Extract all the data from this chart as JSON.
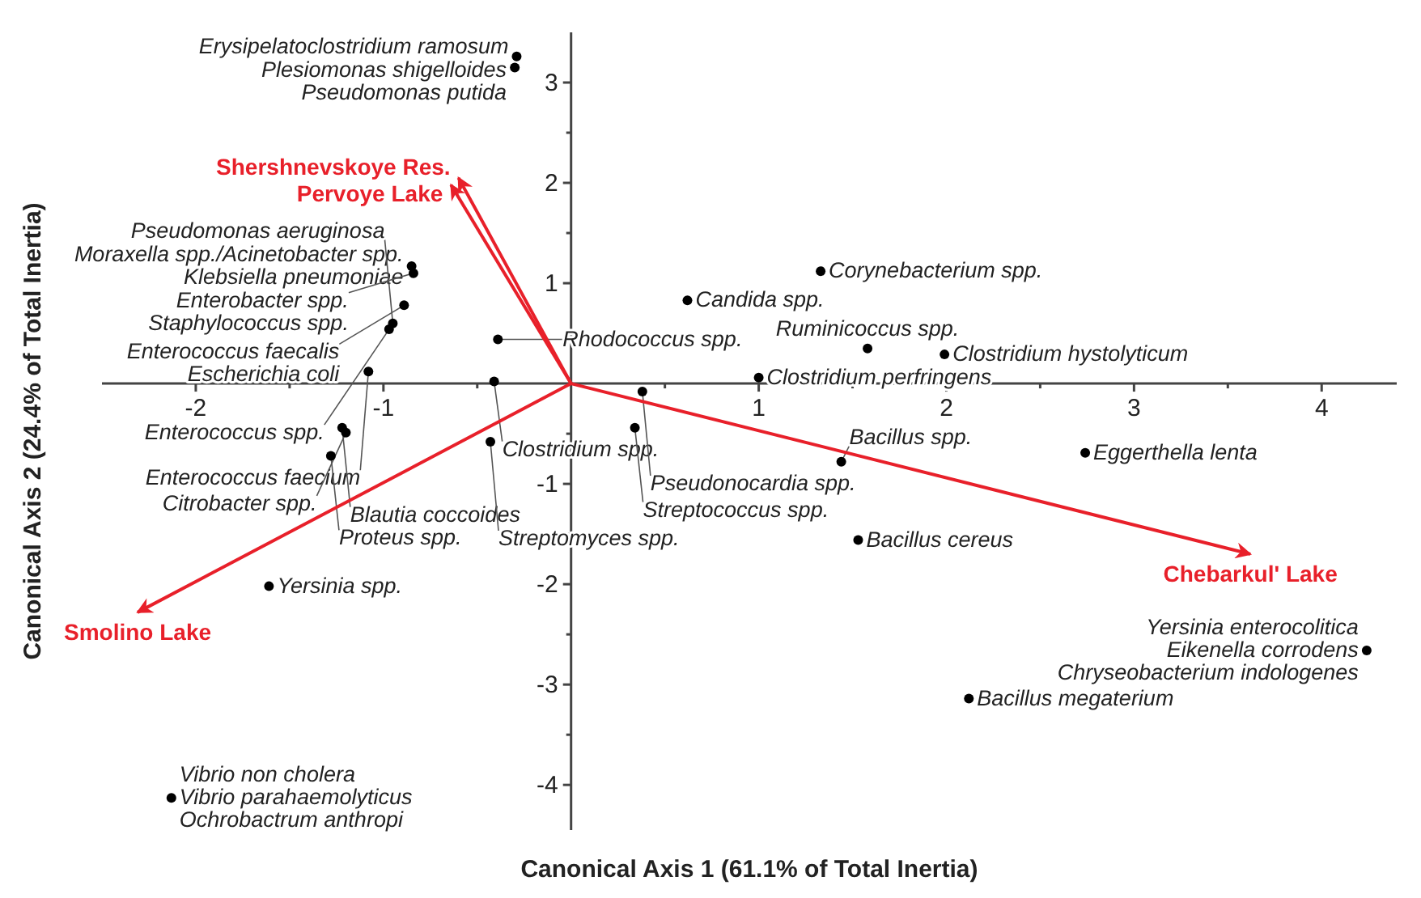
{
  "chart_data": {
    "type": "scatter",
    "xlabel": "Canonical Axis 1 (61.1% of Total Inertia)",
    "ylabel": "Canonical Axis 2 (24.4% of Total Inertia)",
    "xlim": [
      -2.5,
      4.4
    ],
    "ylim": [
      -4.45,
      3.5
    ],
    "xticks": [
      -2,
      {
        "value": -1.5,
        "label": null
      },
      -1,
      {
        "value": -0.5,
        "label": null
      },
      {
        "value": 0.5,
        "label": null
      },
      1,
      {
        "value": 1.5,
        "label": null
      },
      2,
      {
        "value": 2.5,
        "label": null
      },
      3,
      {
        "value": 3.5,
        "label": null
      },
      4
    ],
    "yticks": [
      -4,
      {
        "value": -3.5,
        "label": null
      },
      -3,
      {
        "value": -2.5,
        "label": null
      },
      -2,
      {
        "value": -1.5,
        "label": null
      },
      -1,
      {
        "value": -0.5,
        "label": null
      },
      {
        "value": 0.5,
        "label": null
      },
      1,
      {
        "value": 1.5,
        "label": null
      },
      2,
      {
        "value": 2.5,
        "label": null
      },
      3
    ],
    "marker": "circle",
    "series": [
      {
        "color": "#000000",
        "x": [
          -0.29,
          -0.3,
          -0.85,
          -0.84,
          -0.89,
          -0.95,
          -0.97,
          -0.39,
          -1.08,
          -0.41,
          -1.22,
          -1.2,
          -1.28,
          -0.43,
          -1.61,
          -2.13,
          0.62,
          1.33,
          1.58,
          1.99,
          1.0,
          0.38,
          0.34,
          1.44,
          1.53,
          2.74,
          4.24,
          2.12
        ],
        "values": [
          3.26,
          3.15,
          1.17,
          1.1,
          0.78,
          0.6,
          0.54,
          0.44,
          0.12,
          0.02,
          -0.44,
          -0.49,
          -0.72,
          -0.58,
          -2.02,
          -4.13,
          0.83,
          1.12,
          0.35,
          0.29,
          0.06,
          -0.08,
          -0.44,
          -0.78,
          -1.56,
          -0.69,
          -2.66,
          -3.14
        ]
      },
      {
        "type": "line",
        "name": "Shershnevskoye Res.",
        "color": "#e8202a",
        "x": [
          0,
          -0.6
        ],
        "values": [
          0,
          2.05
        ],
        "marker": "none"
      },
      {
        "type": "line",
        "name": "Pervoye Lake",
        "color": "#e8202a",
        "x": [
          0,
          -0.64
        ],
        "values": [
          0,
          1.98
        ],
        "marker": "none"
      },
      {
        "type": "line",
        "name": "Chebarkul' Lake",
        "color": "#e8202a",
        "x": [
          0,
          3.62
        ],
        "values": [
          0,
          -1.7
        ],
        "marker": "none"
      },
      {
        "type": "line",
        "name": "Smolino Lake",
        "color": "#e8202a",
        "x": [
          0,
          -2.31
        ],
        "values": [
          0,
          -2.28
        ],
        "marker": "none"
      }
    ],
    "annotations": [
      {
        "text": "Erysipelatoclostridium ramosum",
        "x": -0.29,
        "y": 3.26
      },
      {
        "text": "Plesiomonas shigelloides",
        "x": -0.3,
        "y": 3.15
      },
      {
        "text": "Pseudomonas putida",
        "x": -0.3,
        "y": 3.15
      },
      {
        "text": "Moraxella spp./Acinetobacter spp.",
        "x": -0.85,
        "y": 1.17
      },
      {
        "text": "Klebsiella pneumoniae",
        "x": -0.85,
        "y": 1.17
      },
      {
        "text": "Enterobacter spp.",
        "x": -0.84,
        "y": 1.1
      },
      {
        "text": "Staphylococcus spp.",
        "x": -0.84,
        "y": 1.1
      },
      {
        "text": "Enterococcus faecalis",
        "x": -0.89,
        "y": 0.78
      },
      {
        "text": "Escherichia coli",
        "x": -0.89,
        "y": 0.78
      },
      {
        "text": "Pseudomonas aeruginosa",
        "x": -0.95,
        "y": 0.6
      },
      {
        "text": "Enterococcus spp.",
        "x": -0.97,
        "y": 0.54
      },
      {
        "text": "Rhodococcus spp.",
        "x": -0.39,
        "y": 0.44
      },
      {
        "text": "Enterococcus faecium",
        "x": -1.08,
        "y": 0.12
      },
      {
        "text": "Clostridium spp.",
        "x": -0.41,
        "y": 0.02
      },
      {
        "text": "Blautia coccoides",
        "x": -1.22,
        "y": -0.44
      },
      {
        "text": "Citrobacter spp.",
        "x": -1.2,
        "y": -0.49
      },
      {
        "text": "Proteus spp.",
        "x": -1.28,
        "y": -0.72
      },
      {
        "text": "Streptomyces spp.",
        "x": -0.43,
        "y": -0.58
      },
      {
        "text": "Yersinia spp.",
        "x": -1.61,
        "y": -2.02
      },
      {
        "text": "Vibrio non cholera",
        "x": -2.13,
        "y": -4.13
      },
      {
        "text": "Vibrio parahaemolyticus",
        "x": -2.13,
        "y": -4.13
      },
      {
        "text": "Ochrobactrum anthropi",
        "x": -2.13,
        "y": -4.13
      },
      {
        "text": "Candida spp.",
        "x": 0.62,
        "y": 0.83
      },
      {
        "text": "Corynebacterium spp.",
        "x": 1.33,
        "y": 1.12
      },
      {
        "text": "Ruminicoccus spp.",
        "x": 1.58,
        "y": 0.35
      },
      {
        "text": "Clostridium hystolyticum",
        "x": 1.99,
        "y": 0.29
      },
      {
        "text": "Clostridium perfringens",
        "x": 1.0,
        "y": 0.06
      },
      {
        "text": "Pseudonocardia spp.",
        "x": 0.38,
        "y": -0.08
      },
      {
        "text": "Streptococcus spp.",
        "x": 0.34,
        "y": -0.44
      },
      {
        "text": "Bacillus spp.",
        "x": 1.44,
        "y": -0.78
      },
      {
        "text": "Bacillus cereus",
        "x": 1.53,
        "y": -1.56
      },
      {
        "text": "Eggerthella lenta",
        "x": 2.74,
        "y": -0.69
      },
      {
        "text": "Yersinia enterocolitica",
        "x": 4.24,
        "y": -2.66
      },
      {
        "text": "Eikenella corrodens",
        "x": 4.24,
        "y": -2.66
      },
      {
        "text": "Chryseobacterium indologenes",
        "x": 4.24,
        "y": -2.66
      },
      {
        "text": "Bacillus megaterium",
        "x": 2.12,
        "y": -3.14
      }
    ]
  }
}
